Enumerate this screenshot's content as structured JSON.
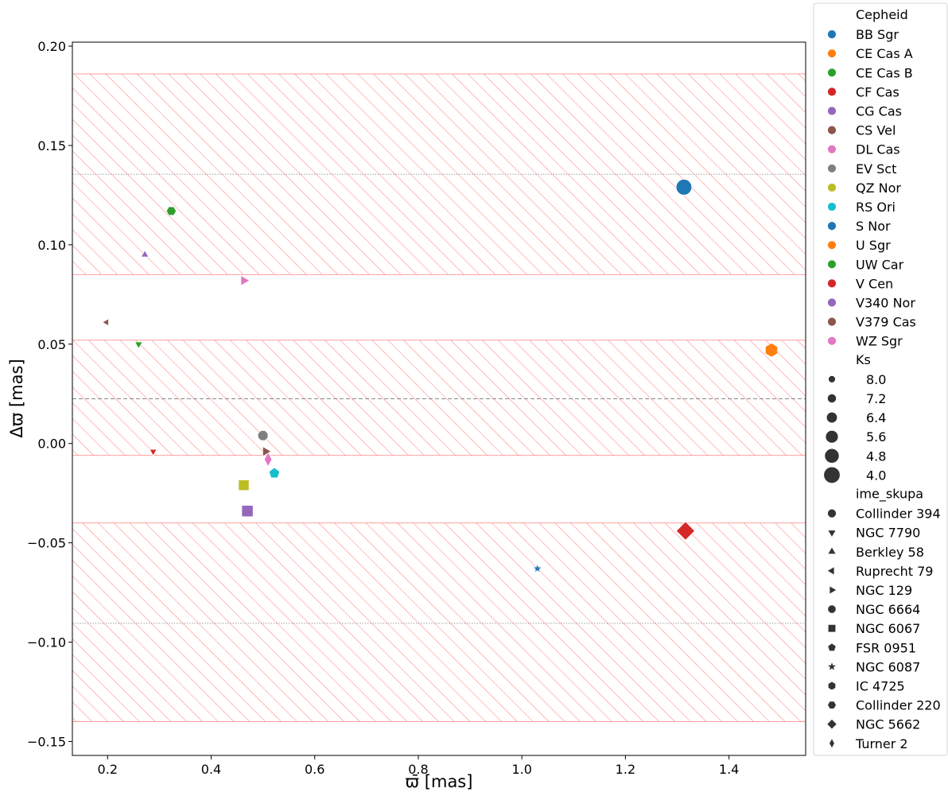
{
  "chart_data": {
    "type": "scatter",
    "xlabel": "ϖ̄ [mas]",
    "ylabel": "Δϖ [mas]",
    "xlim": [
      0.132,
      1.548
    ],
    "ylim": [
      -0.157,
      0.202
    ],
    "x_ticks": [
      0.2,
      0.4,
      0.6,
      0.8,
      1.0,
      1.2,
      1.4
    ],
    "x_tick_labels": [
      "0.2",
      "0.4",
      "0.6",
      "0.8",
      "1.0",
      "1.2",
      "1.4"
    ],
    "y_ticks": [
      -0.15,
      -0.1,
      -0.05,
      0.0,
      0.05,
      0.1,
      0.15,
      0.2
    ],
    "y_tick_labels": [
      "−0.15",
      "−0.10",
      "−0.05",
      "0.00",
      "0.05",
      "0.10",
      "0.15",
      "0.20"
    ],
    "grid": false,
    "legend_position": "outside right",
    "reference_lines": [
      {
        "y": 0.0225,
        "style": "dashed",
        "color": "#888888"
      },
      {
        "y": 0.1355,
        "style": "dotted",
        "color": "#888888"
      },
      {
        "y": -0.0905,
        "style": "dotted",
        "color": "#888888"
      }
    ],
    "hatched_bands": [
      {
        "y_min": 0.085,
        "y_max": 0.186,
        "color": "#ff6666"
      },
      {
        "y_min": -0.006,
        "y_max": 0.052,
        "color": "#ff6666"
      },
      {
        "y_min": -0.14,
        "y_max": -0.04,
        "color": "#ff6666"
      }
    ],
    "hue_title": "Cepheid",
    "size_title": "Ks",
    "style_title": "ime_skupa",
    "hue_entries": [
      {
        "name": "BB Sgr",
        "color": "#1f77b4"
      },
      {
        "name": "CE Cas A",
        "color": "#ff7f0e"
      },
      {
        "name": "CE Cas B",
        "color": "#2ca02c"
      },
      {
        "name": "CF Cas",
        "color": "#d62728"
      },
      {
        "name": "CG Cas",
        "color": "#9467bd"
      },
      {
        "name": "CS Vel",
        "color": "#8c564b"
      },
      {
        "name": "DL Cas",
        "color": "#e377c2"
      },
      {
        "name": "EV Sct",
        "color": "#7f7f7f"
      },
      {
        "name": "QZ Nor",
        "color": "#bcbd22"
      },
      {
        "name": "RS Ori",
        "color": "#17becf"
      },
      {
        "name": "S Nor",
        "color": "#1f77b4"
      },
      {
        "name": "U Sgr",
        "color": "#ff7f0e"
      },
      {
        "name": "UW Car",
        "color": "#2ca02c"
      },
      {
        "name": "V Cen",
        "color": "#d62728"
      },
      {
        "name": "V340 Nor",
        "color": "#9467bd"
      },
      {
        "name": "V379 Cas",
        "color": "#8c564b"
      },
      {
        "name": "WZ Sgr",
        "color": "#e377c2"
      }
    ],
    "size_entries": [
      {
        "label": "8.0",
        "value": 8.0
      },
      {
        "label": "7.2",
        "value": 7.2
      },
      {
        "label": "6.4",
        "value": 6.4
      },
      {
        "label": "5.6",
        "value": 5.6
      },
      {
        "label": "4.8",
        "value": 4.8
      },
      {
        "label": "4.0",
        "value": 4.0
      }
    ],
    "style_entries": [
      {
        "name": "Collinder 394",
        "marker": "circle"
      },
      {
        "name": "NGC 7790",
        "marker": "triangle-down"
      },
      {
        "name": "Berkley 58",
        "marker": "triangle-up"
      },
      {
        "name": "Ruprecht 79",
        "marker": "triangle-left"
      },
      {
        "name": "NGC 129",
        "marker": "triangle-right"
      },
      {
        "name": "NGC 6664",
        "marker": "octagon"
      },
      {
        "name": "NGC 6067",
        "marker": "square"
      },
      {
        "name": "FSR 0951",
        "marker": "pentagon"
      },
      {
        "name": "NGC 6087",
        "marker": "star"
      },
      {
        "name": "IC 4725",
        "marker": "hexagon"
      },
      {
        "name": "Collinder 220",
        "marker": "hexagon2"
      },
      {
        "name": "NGC 5662",
        "marker": "diamond"
      },
      {
        "name": "Turner 2",
        "marker": "thin-diamond"
      }
    ],
    "points": [
      {
        "cepheid": "BB Sgr",
        "cluster": "Collinder 394",
        "x": 1.313,
        "y": 0.129,
        "ks": 4.3
      },
      {
        "cepheid": "CE Cas A",
        "cluster": "NGC 7790",
        "x": 0.288,
        "y": -0.004,
        "ks": 7.7
      },
      {
        "cepheid": "CE Cas B",
        "cluster": "NGC 7790",
        "x": 0.26,
        "y": 0.05,
        "ks": 7.6
      },
      {
        "cepheid": "CF Cas",
        "cluster": "NGC 7790",
        "x": 0.288,
        "y": -0.004,
        "ks": 7.8
      },
      {
        "cepheid": "CG Cas",
        "cluster": "Berkley 58",
        "x": 0.272,
        "y": 0.095,
        "ks": 7.6
      },
      {
        "cepheid": "CS Vel",
        "cluster": "Ruprecht 79",
        "x": 0.198,
        "y": 0.061,
        "ks": 7.9
      },
      {
        "cepheid": "DL Cas",
        "cluster": "NGC 129",
        "x": 0.463,
        "y": 0.082,
        "ks": 6.5
      },
      {
        "cepheid": "EV Sct",
        "cluster": "NGC 6664",
        "x": 0.5,
        "y": 0.004,
        "ks": 6.4
      },
      {
        "cepheid": "QZ Nor",
        "cluster": "NGC 6067",
        "x": 0.463,
        "y": -0.021,
        "ks": 5.9
      },
      {
        "cepheid": "RS Ori",
        "cluster": "FSR 0951",
        "x": 0.522,
        "y": -0.015,
        "ks": 6.2
      },
      {
        "cepheid": "S Nor",
        "cluster": "NGC 6087",
        "x": 1.03,
        "y": -0.063,
        "ks": 7.5
      },
      {
        "cepheid": "U Sgr",
        "cluster": "IC 4725",
        "x": 1.482,
        "y": 0.047,
        "ks": 5.0
      },
      {
        "cepheid": "UW Car",
        "cluster": "Collinder 220",
        "x": 0.323,
        "y": 0.117,
        "ks": 6.8
      },
      {
        "cepheid": "V Cen",
        "cluster": "NGC 5662",
        "x": 1.316,
        "y": -0.044,
        "ks": 4.1
      },
      {
        "cepheid": "V340 Nor",
        "cluster": "NGC 6067",
        "x": 0.47,
        "y": -0.034,
        "ks": 5.5
      },
      {
        "cepheid": "V379 Cas",
        "cluster": "NGC 129",
        "x": 0.505,
        "y": -0.004,
        "ks": 6.7
      },
      {
        "cepheid": "WZ Sgr",
        "cluster": "Turner 2",
        "x": 0.51,
        "y": -0.008,
        "ks": 5.7
      }
    ]
  }
}
